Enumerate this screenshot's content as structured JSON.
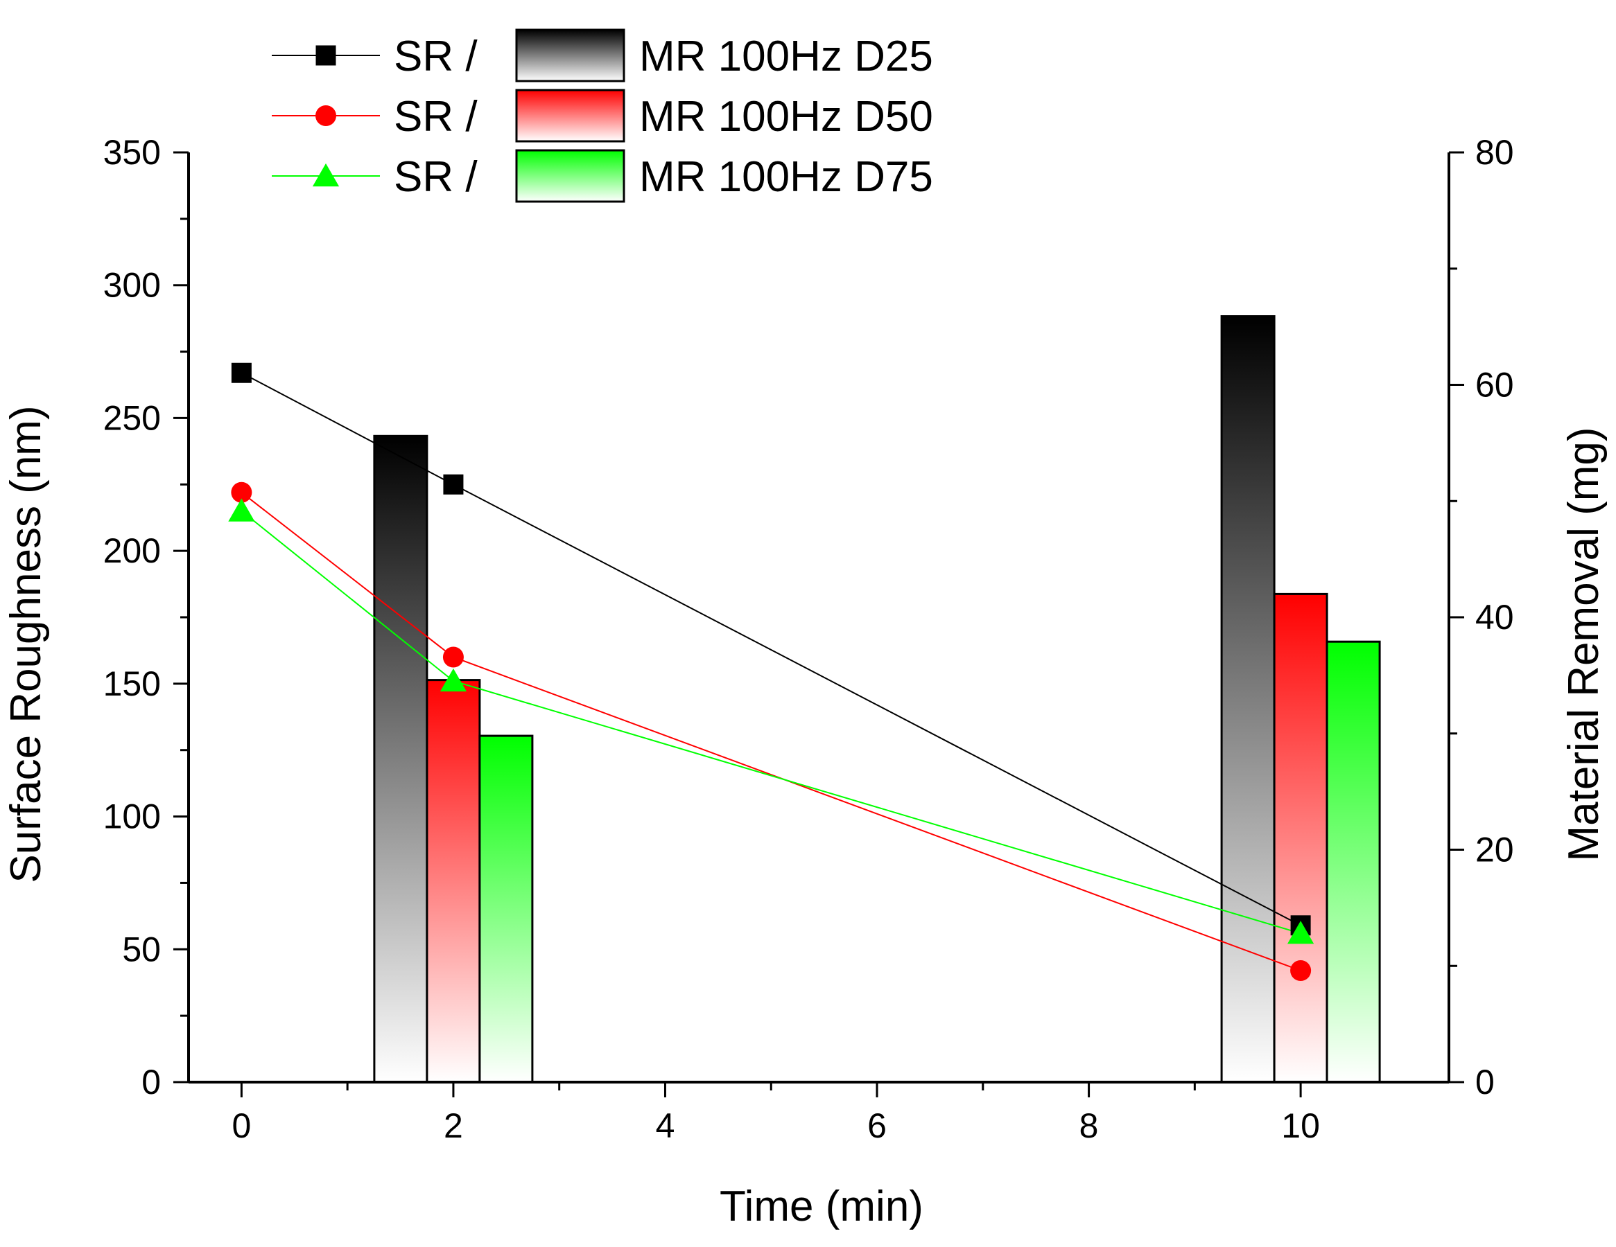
{
  "chart_data": {
    "type": "bar+line",
    "title": "",
    "xlabel": "Time (min)",
    "ylabel_left": "Surface Roughness (nm)",
    "ylabel_right": "Material Removal (mg)",
    "xlim": [
      -0.5,
      11.4
    ],
    "ylim_left": [
      0,
      350
    ],
    "ylim_right": [
      0,
      80
    ],
    "x_ticks": [
      0,
      2,
      4,
      6,
      8,
      10
    ],
    "x_tick_labels": [
      "0",
      "2",
      "4",
      "6",
      "8",
      "10"
    ],
    "y_left_ticks": [
      0,
      50,
      100,
      150,
      200,
      250,
      300,
      350
    ],
    "y_left_tick_labels": [
      "0",
      "50",
      "100",
      "150",
      "200",
      "250",
      "300",
      "350"
    ],
    "y_right_ticks": [
      0,
      20,
      40,
      60,
      80
    ],
    "y_right_tick_labels": [
      "0",
      "20",
      "40",
      "60",
      "80"
    ],
    "grid": false,
    "legend_position": "top-left",
    "legend_sr_label": "SR /",
    "sr_series": [
      {
        "name": "SR / MR 100Hz D25",
        "color": "#000000",
        "marker": "square",
        "x": [
          0,
          2,
          10
        ],
        "y": [
          267,
          225,
          59
        ]
      },
      {
        "name": "SR / MR 100Hz D50",
        "color": "#ff0000",
        "marker": "circle",
        "x": [
          0,
          2,
          10
        ],
        "y": [
          222,
          160,
          42
        ]
      },
      {
        "name": "SR / MR 100Hz D75",
        "color": "#00ff00",
        "marker": "triangle",
        "x": [
          0,
          2,
          10
        ],
        "y": [
          215,
          151,
          56
        ]
      }
    ],
    "mr_series": [
      {
        "name": "MR 100Hz D25",
        "color": "#000000",
        "categories": [
          2,
          10
        ],
        "values": [
          55.6,
          65.9
        ]
      },
      {
        "name": "MR 100Hz D50",
        "color": "#ff0000",
        "categories": [
          2,
          10
        ],
        "values": [
          34.6,
          42.0
        ]
      },
      {
        "name": "MR 100Hz D75",
        "color": "#00ff00",
        "categories": [
          2,
          10
        ],
        "values": [
          29.8,
          37.9
        ]
      }
    ]
  }
}
